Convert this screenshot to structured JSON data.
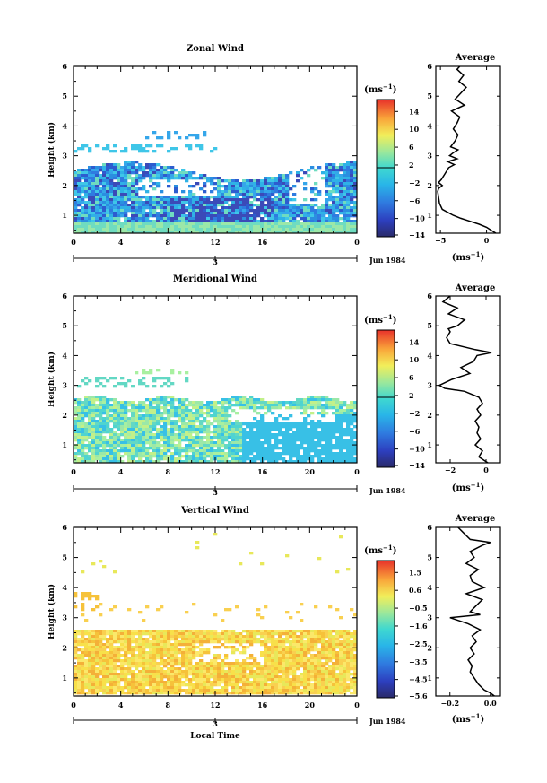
{
  "chart_data": [
    {
      "type": "heatmap",
      "title": "Zonal Wind",
      "ylabel": "Height (km)",
      "y_ticks": [
        "1",
        "2",
        "3",
        "4",
        "5",
        "6"
      ],
      "ylim": [
        0.4,
        6
      ],
      "x_ticks": [
        "0",
        "4",
        "8",
        "12",
        "16",
        "20",
        "0"
      ],
      "xlim": [
        0,
        24
      ],
      "date_day": "3",
      "date_label": "Jun 1984",
      "colorbar": {
        "unit": "(ms",
        "unit_exp": "−1",
        "unit_close": ")",
        "labels": [
          "14",
          "10",
          "6",
          "2",
          "−2",
          "−6",
          "−10",
          "−14"
        ],
        "range": [
          -16,
          16
        ]
      },
      "profile": {
        "title": "Average",
        "x_ticks": [
          "−5",
          "0"
        ],
        "xlim": [
          -5.5,
          1.5
        ],
        "xlabel": "(ms",
        "xlabel_exp": "−1",
        "xlabel_close": ")",
        "heights": [
          0.4,
          0.5,
          0.6,
          0.7,
          0.8,
          0.9,
          1.0,
          1.1,
          1.2,
          1.4,
          1.6,
          1.8,
          1.9,
          2.0,
          2.1,
          2.2,
          2.4,
          2.6,
          2.7,
          2.8,
          2.9,
          3.0,
          3.1,
          3.2,
          3.3,
          3.5,
          3.7,
          3.9,
          4.1,
          4.3,
          4.5,
          4.7,
          4.9,
          5.1,
          5.3,
          5.5,
          5.7,
          5.9,
          6.0
        ],
        "values": [
          1.0,
          0.5,
          0.0,
          -0.8,
          -1.8,
          -2.8,
          -3.6,
          -4.2,
          -4.8,
          -5.1,
          -5.2,
          -5.3,
          -5.2,
          -4.8,
          -5.2,
          -4.9,
          -4.5,
          -4.1,
          -3.5,
          -4.2,
          -3.2,
          -4.0,
          -3.6,
          -3.1,
          -3.9,
          -3.4,
          -3.1,
          -3.6,
          -3.2,
          -2.9,
          -3.8,
          -2.4,
          -3.4,
          -2.8,
          -2.2,
          -3.0,
          -2.5,
          -3.2,
          -2.9
        ]
      }
    },
    {
      "type": "heatmap",
      "title": "Meridional Wind",
      "ylabel": "Height (km)",
      "y_ticks": [
        "1",
        "2",
        "3",
        "4",
        "5",
        "6"
      ],
      "ylim": [
        0.4,
        6
      ],
      "x_ticks": [
        "0",
        "4",
        "8",
        "12",
        "16",
        "20",
        "0"
      ],
      "xlim": [
        0,
        24
      ],
      "date_day": "3",
      "date_label": "Jun 1984",
      "colorbar": {
        "unit": "(ms",
        "unit_exp": "−1",
        "unit_close": ")",
        "labels": [
          "14",
          "10",
          "6",
          "2",
          "−2",
          "−6",
          "−10",
          "−14"
        ],
        "range": [
          -16,
          16
        ]
      },
      "profile": {
        "title": "Average",
        "x_ticks": [
          "−2",
          "0"
        ],
        "xlim": [
          -2.8,
          0.8
        ],
        "xlabel": "(ms",
        "xlabel_exp": "−1",
        "xlabel_close": ")",
        "heights": [
          0.4,
          0.6,
          0.8,
          1.0,
          1.2,
          1.4,
          1.6,
          1.8,
          2.0,
          2.2,
          2.4,
          2.6,
          2.8,
          2.9,
          3.0,
          3.2,
          3.4,
          3.6,
          3.8,
          4.0,
          4.1,
          4.2,
          4.4,
          4.6,
          4.8,
          4.9,
          5.0,
          5.2,
          5.4,
          5.6,
          5.8,
          6.0
        ],
        "values": [
          0.1,
          -0.4,
          -0.2,
          -0.6,
          -0.3,
          -0.5,
          -0.4,
          -0.6,
          -0.3,
          -0.5,
          -0.2,
          -0.4,
          -1.2,
          -2.3,
          -2.6,
          -1.9,
          -0.9,
          -1.4,
          -0.7,
          -0.5,
          0.3,
          -0.6,
          -2.0,
          -2.2,
          -2.0,
          -2.1,
          -1.6,
          -1.2,
          -2.1,
          -1.6,
          -2.4,
          -2.0
        ]
      }
    },
    {
      "type": "heatmap",
      "title": "Vertical Wind",
      "ylabel": "Height (km)",
      "y_ticks": [
        "1",
        "2",
        "3",
        "4",
        "5",
        "6"
      ],
      "ylim": [
        0.4,
        6
      ],
      "x_ticks": [
        "0",
        "4",
        "8",
        "12",
        "16",
        "20",
        "0"
      ],
      "xlim": [
        0,
        24
      ],
      "date_day": "3",
      "date_label": "Jun 1984",
      "xlabel": "Local Time",
      "colorbar": {
        "unit": "(ms",
        "unit_exp": "−1",
        "unit_close": ")",
        "labels": [
          "1.5",
          "0.6",
          "−0.5",
          "−1.6",
          "−2.5",
          "−3.5",
          "−4.5",
          "−5.6"
        ],
        "range": [
          -6,
          2
        ]
      },
      "profile": {
        "title": "Average",
        "x_ticks": [
          "−0.2",
          "0.0"
        ],
        "xlim": [
          -0.27,
          0.05
        ],
        "xlabel": "(ms",
        "xlabel_exp": "−1",
        "xlabel_close": ")",
        "heights": [
          0.4,
          0.5,
          0.6,
          0.8,
          1.0,
          1.2,
          1.4,
          1.6,
          1.8,
          2.0,
          2.2,
          2.4,
          2.6,
          2.8,
          3.0,
          3.1,
          3.2,
          3.4,
          3.6,
          3.8,
          4.0,
          4.2,
          4.4,
          4.6,
          4.8,
          5.0,
          5.2,
          5.4,
          5.5,
          5.6,
          5.8,
          6.0
        ],
        "values": [
          0.02,
          0.0,
          -0.03,
          -0.06,
          -0.08,
          -0.1,
          -0.09,
          -0.11,
          -0.08,
          -0.1,
          -0.07,
          -0.09,
          -0.05,
          -0.11,
          -0.2,
          -0.05,
          -0.1,
          -0.07,
          -0.04,
          -0.12,
          -0.03,
          -0.09,
          -0.1,
          -0.06,
          -0.12,
          -0.08,
          -0.1,
          -0.04,
          0.0,
          -0.1,
          -0.13,
          -0.16
        ]
      }
    }
  ]
}
